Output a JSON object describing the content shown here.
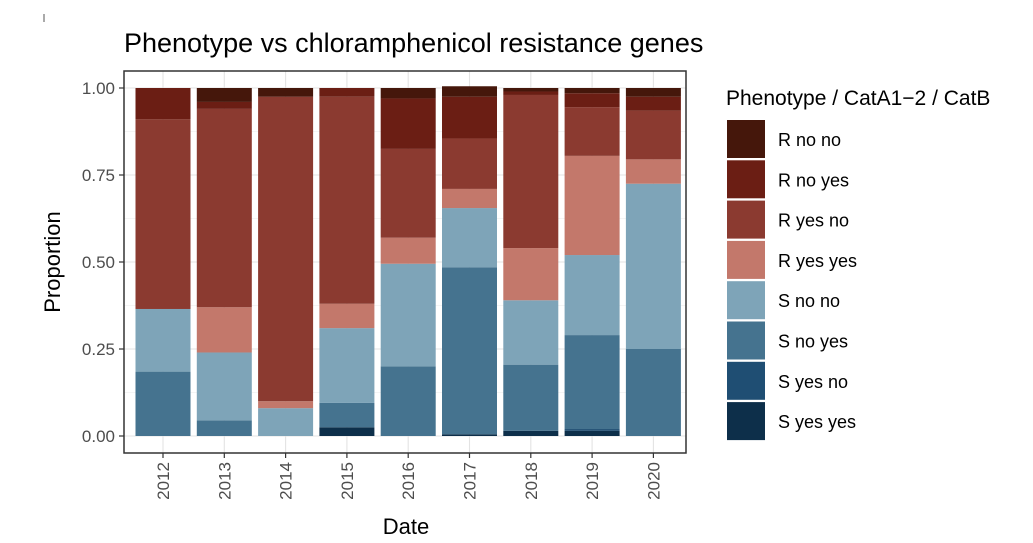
{
  "chart_data": {
    "type": "bar",
    "stacked": true,
    "title": "Phenotype vs chloramphenicol resistance genes",
    "xlabel": "Date",
    "ylabel": "Proportion",
    "ylim": [
      0,
      1
    ],
    "yticks": [
      0,
      0.25,
      0.5,
      0.75,
      1
    ],
    "ytick_labels": [
      "0.00",
      "0.25",
      "0.50",
      "0.75",
      "1.00"
    ],
    "categories": [
      "2012",
      "2013",
      "2014",
      "2015",
      "2016",
      "2017",
      "2018",
      "2019",
      "2020"
    ],
    "legend_title": "Phenotype / CatA1−2 / CatB",
    "legend_position": "right",
    "series": [
      {
        "name": "S yes yes",
        "color": "#0d2f4a",
        "values": [
          0.0,
          0.0,
          0.0,
          0.025,
          0.0,
          0.005,
          0.015,
          0.015,
          0.0
        ]
      },
      {
        "name": "S yes no",
        "color": "#1f4e73",
        "values": [
          0.0,
          0.0,
          0.0,
          0.0,
          0.0,
          0.0,
          0.0,
          0.005,
          0.0
        ]
      },
      {
        "name": "S no yes",
        "color": "#45738f",
        "values": [
          0.185,
          0.045,
          0.0,
          0.07,
          0.2,
          0.48,
          0.19,
          0.27,
          0.25
        ]
      },
      {
        "name": "S no no",
        "color": "#7ea4b8",
        "values": [
          0.18,
          0.195,
          0.08,
          0.215,
          0.295,
          0.17,
          0.185,
          0.23,
          0.475
        ]
      },
      {
        "name": "R yes yes",
        "color": "#c3786b",
        "values": [
          0.0,
          0.13,
          0.02,
          0.07,
          0.075,
          0.055,
          0.15,
          0.285,
          0.07
        ]
      },
      {
        "name": "R yes no",
        "color": "#8b3a30",
        "values": [
          0.545,
          0.57,
          0.875,
          0.595,
          0.255,
          0.145,
          0.44,
          0.14,
          0.14
        ]
      },
      {
        "name": "R no yes",
        "color": "#6b1e14",
        "values": [
          0.09,
          0.02,
          0.0,
          0.025,
          0.145,
          0.12,
          0.01,
          0.04,
          0.04
        ]
      },
      {
        "name": "R no no",
        "color": "#45170b",
        "values": [
          0.0,
          0.04,
          0.025,
          0.0,
          0.03,
          0.03,
          0.01,
          0.015,
          0.025
        ]
      }
    ]
  },
  "legend_order": [
    "R no no",
    "R no yes",
    "R yes no",
    "R yes yes",
    "S no no",
    "S no yes",
    "S yes no",
    "S yes yes"
  ]
}
